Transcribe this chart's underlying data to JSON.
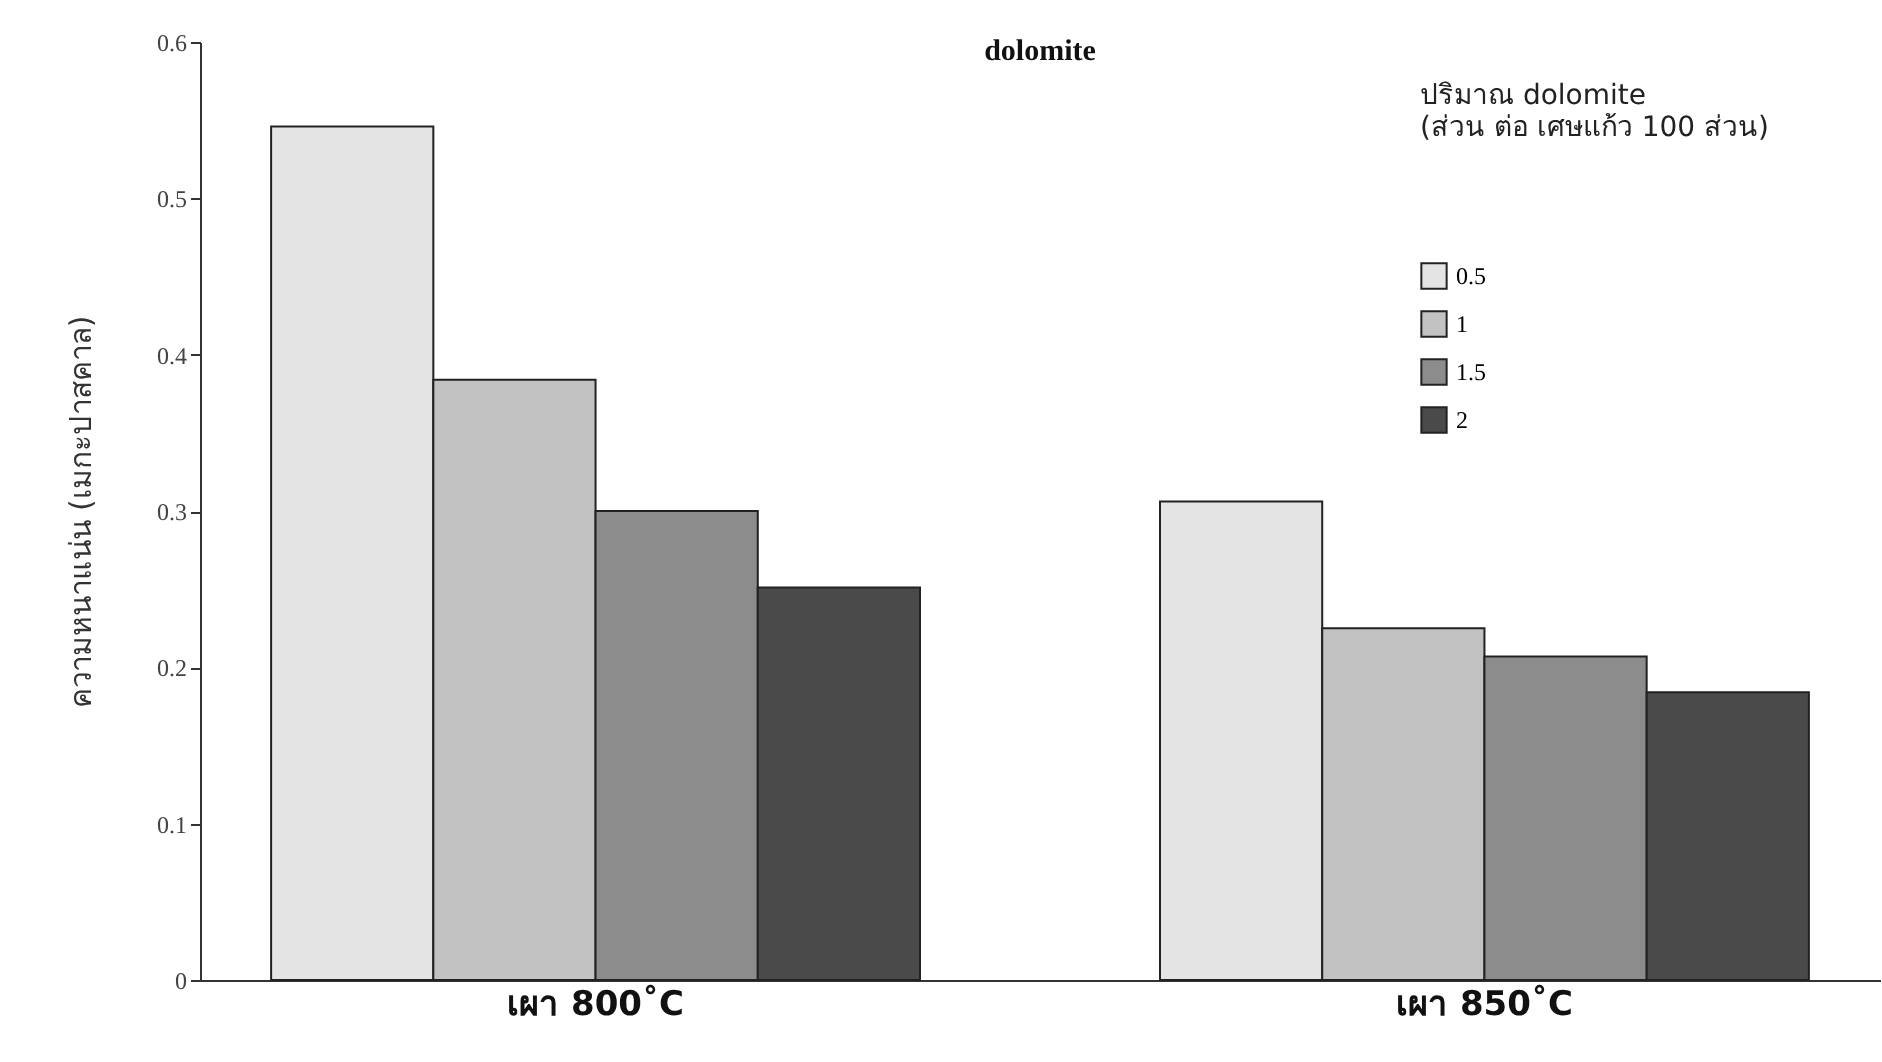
{
  "chart_data": {
    "type": "bar",
    "title": "dolomite",
    "ylabel": "ความหนาแน่น (เมกะปาสคาล)",
    "legend_title": "ปริมาณ dolomite\n(ส่วน ต่อ เศษแก้ว 100 ส่วน)",
    "categories": [
      "เผา 800˚C",
      "เผา 850˚C"
    ],
    "series": [
      {
        "name": "0.5",
        "color": "#e4e4e4",
        "values": [
          0.546,
          0.306
        ]
      },
      {
        "name": "1",
        "color": "#c2c2c2",
        "values": [
          0.384,
          0.225
        ]
      },
      {
        "name": "1.5",
        "color": "#8c8c8c",
        "values": [
          0.3,
          0.207
        ]
      },
      {
        "name": "2",
        "color": "#4a4a4a",
        "values": [
          0.251,
          0.184
        ]
      }
    ],
    "ylim": [
      0,
      0.6
    ],
    "yticks": [
      0,
      0.1,
      0.2,
      0.3,
      0.4,
      0.5,
      0.6
    ],
    "grid": false,
    "legend": "top right"
  }
}
